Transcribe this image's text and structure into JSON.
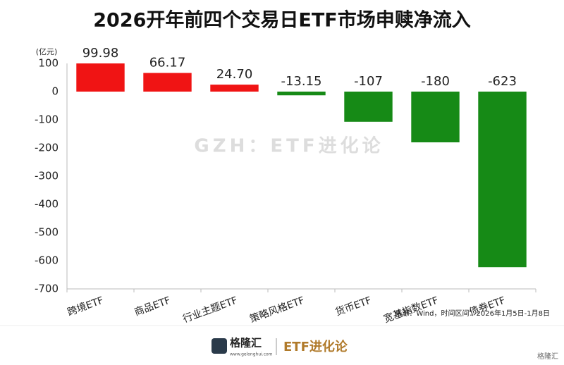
{
  "chart_data": {
    "type": "bar",
    "title": "2026开年前四个交易日ETF市场申赎净流入",
    "y_label": "(亿元)",
    "categories": [
      "跨境ETF",
      "商品ETF",
      "行业主题ETF",
      "策略风格ETF",
      "货币ETF",
      "宽基指数ETF",
      "债券ETF"
    ],
    "values": [
      99.98,
      66.17,
      24.7,
      -13.15,
      -107,
      -180,
      -623
    ],
    "value_labels": [
      "99.98",
      "66.17",
      "24.70",
      "-13.15",
      "-107",
      "-180",
      "-623"
    ],
    "colors": [
      "#f01414",
      "#f01414",
      "#f01414",
      "#168a16",
      "#168a16",
      "#168a16",
      "#168a16"
    ],
    "ylim": [
      -700,
      100
    ],
    "yticks": [
      -700,
      -600,
      -500,
      -400,
      -300,
      -200,
      -100,
      0,
      100
    ],
    "grid": false,
    "watermark": "GZH：ETF进化论",
    "source": "来源：Wind，时间区间：2026年1月5日-1月8日",
    "footer": {
      "logo": "格隆汇",
      "site": "www.gelonghui.com",
      "brand": "ETF进化论",
      "corner": "格隆汇"
    }
  }
}
